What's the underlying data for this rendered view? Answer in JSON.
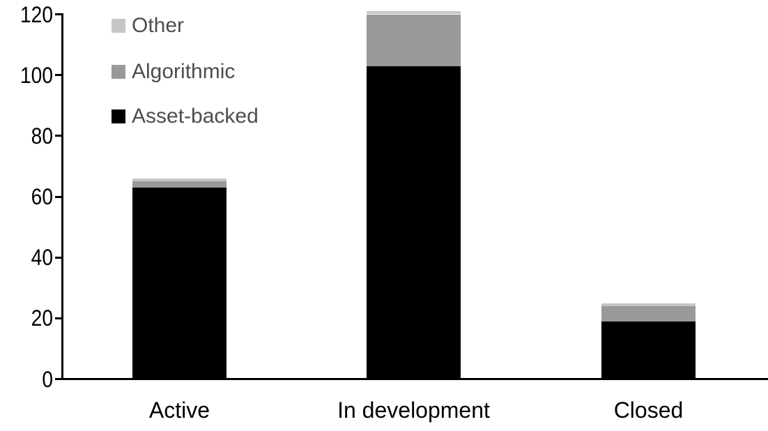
{
  "chart_data": {
    "type": "bar",
    "stacked": true,
    "title": "",
    "xlabel": "",
    "ylabel": "",
    "categories": [
      "Active",
      "In development",
      "Closed"
    ],
    "series": [
      {
        "name": "Asset-backed",
        "color": "#000000",
        "values": [
          63,
          103,
          19
        ]
      },
      {
        "name": "Algorithmic",
        "color": "#999999",
        "values": [
          2,
          17,
          5
        ]
      },
      {
        "name": "Other",
        "color": "#c6c6c6",
        "values": [
          1,
          1,
          1
        ]
      }
    ],
    "totals": [
      66,
      121,
      25
    ],
    "y_ticks": [
      0,
      20,
      40,
      60,
      80,
      100,
      120
    ],
    "ylim": [
      0,
      120
    ],
    "grid": false,
    "legend_position": "top-left",
    "legend_order_top_to_bottom": [
      "Other",
      "Algorithmic",
      "Asset-backed"
    ]
  },
  "colors": {
    "axis": "#000000",
    "tick_label_text": "#000000",
    "category_label_text": "#000000",
    "legend_text": "#4d4d4d",
    "background": "#ffffff"
  }
}
